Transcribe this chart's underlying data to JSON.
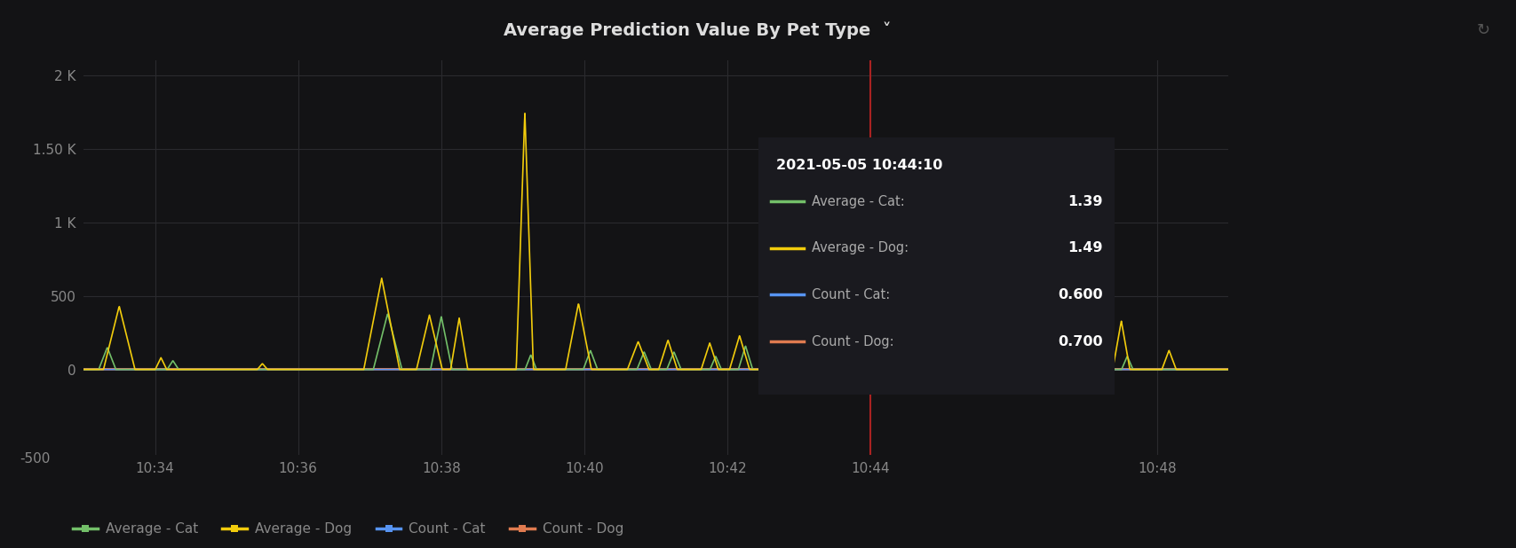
{
  "title": "Average Prediction Value By Pet Type  ˅",
  "bg_color": "#131315",
  "grid_color": "#2a2a2e",
  "text_color": "#cccccc",
  "tick_color": "#888888",
  "ylim": [
    -580,
    2100
  ],
  "yticks": [
    0,
    500,
    1000,
    1500,
    2000
  ],
  "ytick_labels": [
    "0",
    "500",
    "1 K",
    "1.50 K",
    "2 K"
  ],
  "xtick_labels": [
    "10:34",
    "10:36",
    "10:38",
    "10:40",
    "10:42",
    "10:44",
    "10:48"
  ],
  "line_colors": {
    "avg_cat": "#73bf69",
    "avg_dog": "#f2cc0c",
    "count_cat": "#5794f2",
    "count_dog": "#e07b50"
  },
  "legend_entries": [
    "Average - Cat",
    "Average - Dog",
    "Count - Cat",
    "Count - Dog"
  ],
  "tooltip_time": "2021-05-05 10:44:10",
  "tooltip_values": {
    "Average - Cat": "1.39",
    "Average - Dog": "1.49",
    "Count - Cat": "0.600",
    "Count - Dog": "0.700"
  },
  "vline_color": "#aa2222",
  "dot_color": "#e07b50",
  "refresh_icon": "↻"
}
